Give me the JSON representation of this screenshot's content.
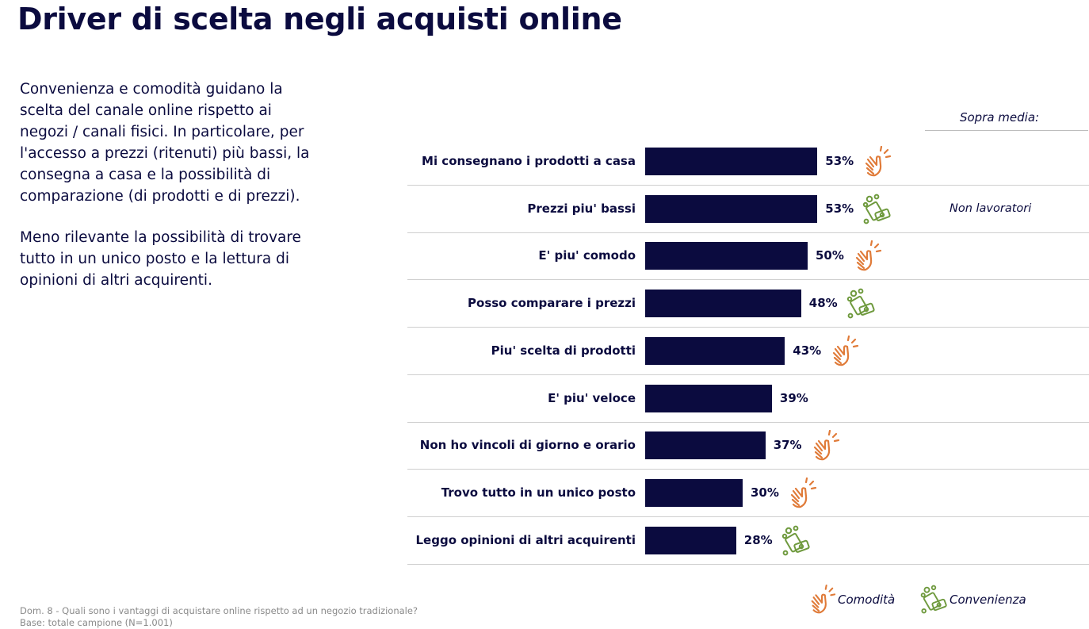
{
  "title": "Driver di scelta negli acquisti online",
  "intro": {
    "paragraph1": "Convenienza e comodità guidano la scelta del canale online rispetto ai negozi / canali fisici. In particolare, per l'accesso a prezzi (ritenuti) più bassi, la consegna a casa e la possibilità di comparazione (di prodotti e di prezzi).",
    "paragraph2": "Meno rilevante la possibilità di trovare tutto in un unico posto e la lettura di opinioni di altri acquirenti."
  },
  "sopra_media_header": "Sopra media:",
  "colors": {
    "bar": "#0b0b3f",
    "comodita": "#e07b39",
    "convenienza": "#6f9a3e"
  },
  "chart_data": {
    "type": "bar",
    "orientation": "horizontal",
    "unit": "%",
    "xlim": [
      0,
      100
    ],
    "categories": [
      "Mi consegnano i prodotti a casa",
      "Prezzi piu' bassi",
      "E' piu' comodo",
      "Posso comparare i prezzi",
      "Piu' scelta di prodotti",
      "E' piu' veloce",
      "Non ho vincoli di giorno e orario",
      "Trovo tutto in un unico posto",
      "Leggo opinioni di altri acquirenti"
    ],
    "values": [
      53,
      53,
      50,
      48,
      43,
      39,
      37,
      30,
      28
    ],
    "value_labels": [
      "53%",
      "53%",
      "50%",
      "48%",
      "43%",
      "39%",
      "37%",
      "30%",
      "28%"
    ],
    "driver_icons": [
      "comodita-icon",
      "convenienza-icon",
      "comodita-icon",
      "convenienza-icon",
      "comodita-icon",
      null,
      "comodita-icon",
      "comodita-icon",
      "convenienza-icon"
    ],
    "sopra_media": [
      "",
      "Non lavoratori",
      "",
      "",
      "",
      "",
      "",
      "",
      ""
    ],
    "legend": [
      {
        "label": "Comodità",
        "icon": "comodita-icon"
      },
      {
        "label": "Convenienza",
        "icon": "convenienza-icon"
      }
    ],
    "grid": false
  },
  "footer": {
    "question": "Dom. 8 - Quali sono i vantaggi di acquistare online rispetto ad un negozio tradizionale?",
    "base": "Base: totale campione (N=1.001)"
  }
}
